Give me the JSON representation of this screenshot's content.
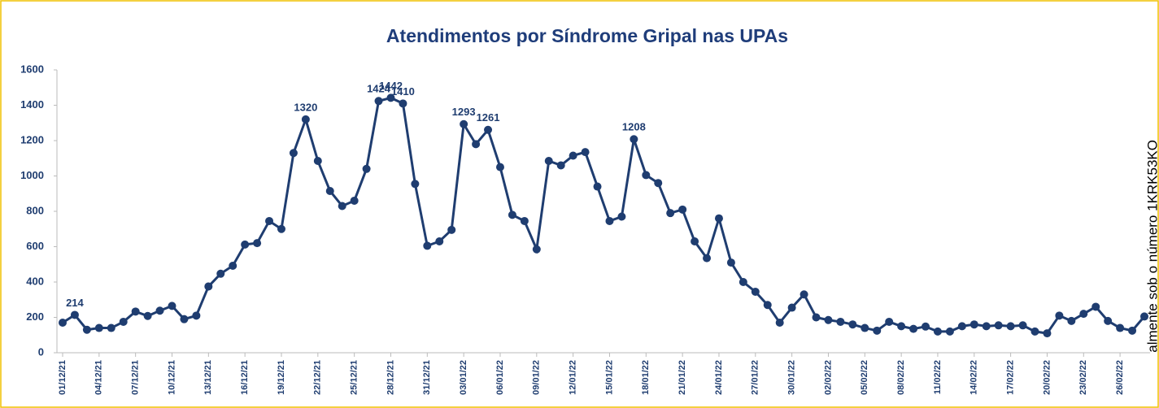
{
  "chart_data": {
    "type": "line",
    "title": "Atendimentos por Síndrome Gripal nas UPAs",
    "watermark": "almente sob o número 1KRK53KO",
    "categories": [
      "01/12/21",
      null,
      null,
      "04/12/21",
      null,
      null,
      "07/12/21",
      null,
      null,
      "10/12/21",
      null,
      null,
      "13/12/21",
      null,
      null,
      "16/12/21",
      null,
      null,
      "19/12/21",
      null,
      null,
      "22/12/21",
      null,
      null,
      "25/12/21",
      null,
      null,
      "28/12/21",
      null,
      null,
      "31/12/21",
      null,
      null,
      "03/01/22",
      null,
      null,
      "06/01/22",
      null,
      null,
      "09/01/22",
      null,
      null,
      "12/01/22",
      null,
      null,
      "15/01/22",
      null,
      null,
      "18/01/22",
      null,
      null,
      "21/01/22",
      null,
      null,
      "24/01/22",
      null,
      null,
      "27/01/22",
      null,
      null,
      "30/01/22",
      null,
      null,
      "02/02/22",
      null,
      null,
      "05/02/22",
      null,
      null,
      "08/02/22",
      null,
      null,
      "11/02/22",
      null,
      null,
      "14/02/22",
      null,
      null,
      "17/02/22",
      null,
      null,
      "20/02/22",
      null,
      null,
      "23/02/22",
      null,
      null,
      "26/02/22",
      null,
      null
    ],
    "series": [
      {
        "color": "#1f3d70",
        "values": [
          170,
          214,
          130,
          140,
          140,
          175,
          233,
          208,
          238,
          265,
          190,
          210,
          375,
          447,
          492,
          612,
          620,
          745,
          700,
          1130,
          1320,
          1085,
          915,
          830,
          860,
          1040,
          1424,
          1442,
          1410,
          955,
          605,
          630,
          695,
          1293,
          1180,
          1261,
          1050,
          780,
          745,
          585,
          1085,
          1060,
          1115,
          1135,
          940,
          745,
          770,
          1208,
          1005,
          960,
          790,
          810,
          630,
          535,
          760,
          510,
          400,
          345,
          270,
          170,
          255,
          330,
          200,
          185,
          175,
          160,
          140,
          125,
          175,
          150,
          135,
          148,
          120,
          120,
          150,
          160,
          150,
          155,
          150,
          155,
          120,
          110,
          210,
          180,
          220,
          260,
          180,
          140,
          125,
          205
        ]
      }
    ],
    "data_label_indices": [
      1,
      20,
      26,
      27,
      28,
      33,
      35,
      47
    ],
    "ylim": [
      0,
      1600
    ],
    "yticks": [
      0,
      200,
      400,
      600,
      800,
      1000,
      1200,
      1400,
      1600
    ]
  }
}
